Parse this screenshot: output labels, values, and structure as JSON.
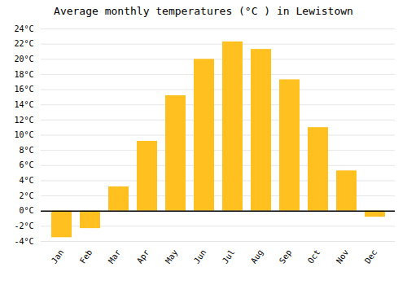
{
  "chart_data": {
    "type": "bar",
    "title": "Average monthly temperatures (°C ) in Lewistown",
    "categories": [
      "Jan",
      "Feb",
      "Mar",
      "Apr",
      "May",
      "Jun",
      "Jul",
      "Aug",
      "Sep",
      "Oct",
      "Nov",
      "Dec"
    ],
    "values": [
      -3.5,
      -2.3,
      3.2,
      9.2,
      15.2,
      20.0,
      22.3,
      21.3,
      17.3,
      11.0,
      5.3,
      -0.8
    ],
    "color": "#FFC020",
    "ylim": [
      -4,
      24
    ],
    "yticks": [
      {
        "value": -4,
        "label": "-4°C"
      },
      {
        "value": -2,
        "label": "-2°C"
      },
      {
        "value": 0,
        "label": "0°C"
      },
      {
        "value": 2,
        "label": "2°C"
      },
      {
        "value": 4,
        "label": "4°C"
      },
      {
        "value": 6,
        "label": "6°C"
      },
      {
        "value": 8,
        "label": "8°C"
      },
      {
        "value": 10,
        "label": "10°C"
      },
      {
        "value": 12,
        "label": "12°C"
      },
      {
        "value": 14,
        "label": "14°C"
      },
      {
        "value": 16,
        "label": "16°C"
      },
      {
        "value": 18,
        "label": "18°C"
      },
      {
        "value": 20,
        "label": "20°C"
      },
      {
        "value": 22,
        "label": "22°C"
      },
      {
        "value": 24,
        "label": "24°C"
      }
    ],
    "grid": true
  }
}
